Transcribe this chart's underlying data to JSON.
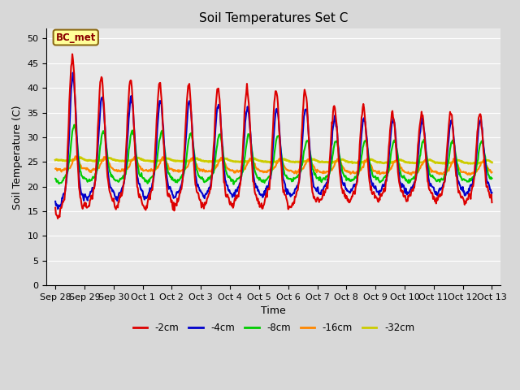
{
  "title": "Soil Temperatures Set C",
  "xlabel": "Time",
  "ylabel": "Soil Temperature (C)",
  "ylim": [
    0,
    52
  ],
  "yticks": [
    0,
    5,
    10,
    15,
    20,
    25,
    30,
    35,
    40,
    45,
    50
  ],
  "fig_bg_color": "#d8d8d8",
  "plot_bg_color": "#e8e8e8",
  "grid_color": "#ffffff",
  "annotation_text": "BC_met",
  "annotation_bg": "#ffff99",
  "annotation_border": "#8b6914",
  "series_colors": {
    "-2cm": "#dd0000",
    "-4cm": "#0000cc",
    "-8cm": "#00cc00",
    "-16cm": "#ff8800",
    "-32cm": "#cccc00"
  },
  "x_tick_labels": [
    "Sep 28",
    "Sep 29",
    "Sep 30",
    "Oct 1",
    "Oct 2",
    "Oct 3",
    "Oct 4",
    "Oct 5",
    "Oct 6",
    "Oct 7",
    "Oct 8",
    "Oct 9",
    "Oct 10",
    "Oct 11",
    "Oct 12",
    "Oct 13"
  ]
}
